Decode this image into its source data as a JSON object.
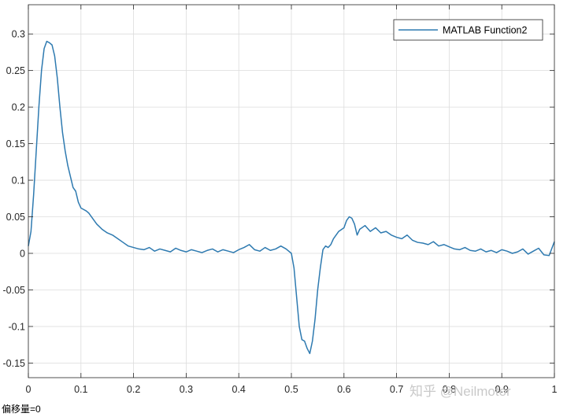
{
  "chart_data": {
    "type": "line",
    "xlim": [
      0,
      1
    ],
    "ylim": [
      -0.17,
      0.34
    ],
    "x_ticks": [
      0,
      0.1,
      0.2,
      0.3,
      0.4,
      0.5,
      0.6,
      0.7,
      0.8,
      0.9,
      1
    ],
    "x_tick_labels": [
      "0",
      "0.1",
      "0.2",
      "0.3",
      "0.4",
      "0.5",
      "0.6",
      "0.7",
      "0.8",
      "0.9",
      "1"
    ],
    "y_ticks": [
      -0.15,
      -0.1,
      -0.05,
      0,
      0.05,
      0.1,
      0.15,
      0.2,
      0.25,
      0.3
    ],
    "y_tick_labels": [
      "-0.15",
      "-0.1",
      "-0.05",
      "0",
      "0.05",
      "0.1",
      "0.15",
      "0.2",
      "0.25",
      "0.3"
    ],
    "grid": true,
    "legend_position": "top-right",
    "series": [
      {
        "name": "MATLAB Function2",
        "color": "#2e7ab0",
        "x": [
          0,
          0.005,
          0.01,
          0.015,
          0.02,
          0.025,
          0.03,
          0.035,
          0.04,
          0.045,
          0.05,
          0.055,
          0.06,
          0.065,
          0.07,
          0.075,
          0.08,
          0.085,
          0.09,
          0.095,
          0.1,
          0.105,
          0.11,
          0.115,
          0.12,
          0.125,
          0.13,
          0.14,
          0.15,
          0.16,
          0.17,
          0.18,
          0.19,
          0.2,
          0.21,
          0.22,
          0.23,
          0.24,
          0.25,
          0.26,
          0.27,
          0.28,
          0.29,
          0.3,
          0.31,
          0.32,
          0.33,
          0.34,
          0.35,
          0.36,
          0.37,
          0.38,
          0.39,
          0.4,
          0.41,
          0.42,
          0.43,
          0.44,
          0.45,
          0.46,
          0.47,
          0.48,
          0.49,
          0.5,
          0.505,
          0.51,
          0.515,
          0.52,
          0.525,
          0.53,
          0.535,
          0.54,
          0.545,
          0.55,
          0.555,
          0.56,
          0.565,
          0.57,
          0.575,
          0.58,
          0.59,
          0.6,
          0.605,
          0.61,
          0.615,
          0.62,
          0.625,
          0.63,
          0.64,
          0.65,
          0.66,
          0.67,
          0.68,
          0.69,
          0.7,
          0.71,
          0.72,
          0.73,
          0.74,
          0.75,
          0.76,
          0.77,
          0.78,
          0.79,
          0.8,
          0.81,
          0.82,
          0.83,
          0.84,
          0.85,
          0.86,
          0.87,
          0.88,
          0.89,
          0.9,
          0.91,
          0.92,
          0.93,
          0.94,
          0.95,
          0.96,
          0.97,
          0.98,
          0.99,
          1
        ],
        "y": [
          0.01,
          0.03,
          0.08,
          0.14,
          0.2,
          0.25,
          0.28,
          0.29,
          0.288,
          0.285,
          0.27,
          0.24,
          0.2,
          0.165,
          0.14,
          0.12,
          0.105,
          0.09,
          0.085,
          0.07,
          0.062,
          0.06,
          0.058,
          0.055,
          0.05,
          0.045,
          0.04,
          0.033,
          0.028,
          0.025,
          0.02,
          0.015,
          0.01,
          0.008,
          0.006,
          0.005,
          0.008,
          0.003,
          0.006,
          0.004,
          0.002,
          0.007,
          0.004,
          0.002,
          0.005,
          0.003,
          0.001,
          0.004,
          0.006,
          0.002,
          0.005,
          0.003,
          0.001,
          0.005,
          0.008,
          0.012,
          0.005,
          0.003,
          0.008,
          0.004,
          0.006,
          0.01,
          0.006,
          0.0,
          -0.02,
          -0.06,
          -0.1,
          -0.118,
          -0.12,
          -0.13,
          -0.137,
          -0.12,
          -0.09,
          -0.05,
          -0.02,
          0.005,
          0.01,
          0.008,
          0.012,
          0.02,
          0.03,
          0.035,
          0.045,
          0.05,
          0.048,
          0.04,
          0.025,
          0.033,
          0.038,
          0.03,
          0.035,
          0.028,
          0.03,
          0.025,
          0.022,
          0.02,
          0.025,
          0.018,
          0.015,
          0.014,
          0.012,
          0.016,
          0.01,
          0.012,
          0.009,
          0.006,
          0.005,
          0.008,
          0.004,
          0.003,
          0.006,
          0.002,
          0.004,
          0.001,
          0.005,
          0.003,
          0.0,
          0.002,
          0.006,
          -0.001,
          0.003,
          0.007,
          -0.002,
          -0.003,
          0.016
        ]
      }
    ]
  },
  "footer": {
    "offset_label": "偏移量=0"
  },
  "watermark": {
    "text": "知乎 @Neilmotor"
  }
}
